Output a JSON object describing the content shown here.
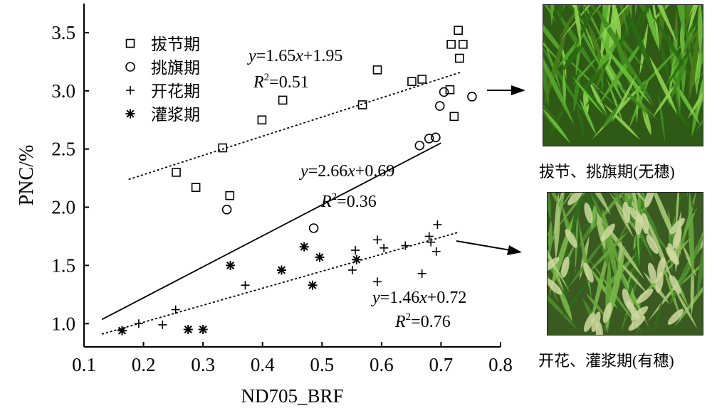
{
  "chart_data": {
    "type": "scatter",
    "xlabel": "ND705_BRF",
    "ylabel": "PNC/%",
    "xlim": [
      0.1,
      0.8
    ],
    "ylim": [
      0.8,
      3.75
    ],
    "xticks": [
      "0.1",
      "0.2",
      "0.3",
      "0.4",
      "0.5",
      "0.6",
      "0.7",
      "0.8"
    ],
    "yticks": [
      "1.0",
      "1.5",
      "2.0",
      "2.5",
      "3.0",
      "3.5"
    ],
    "legend_position": "top-left",
    "series": [
      {
        "name": "拔节期",
        "marker": "square",
        "points": [
          [
            0.255,
            2.3
          ],
          [
            0.288,
            2.17
          ],
          [
            0.333,
            2.51
          ],
          [
            0.345,
            2.1
          ],
          [
            0.399,
            2.75
          ],
          [
            0.434,
            2.92
          ],
          [
            0.568,
            2.88
          ],
          [
            0.593,
            3.18
          ],
          [
            0.651,
            3.08
          ],
          [
            0.668,
            3.1
          ],
          [
            0.715,
            3.01
          ],
          [
            0.717,
            3.4
          ],
          [
            0.722,
            2.78
          ],
          [
            0.729,
            3.52
          ],
          [
            0.731,
            3.28
          ],
          [
            0.737,
            3.4
          ]
        ]
      },
      {
        "name": "挑旗期",
        "marker": "circle",
        "points": [
          [
            0.34,
            1.98
          ],
          [
            0.486,
            1.82
          ],
          [
            0.664,
            2.53
          ],
          [
            0.68,
            2.59
          ],
          [
            0.691,
            2.6
          ],
          [
            0.698,
            2.87
          ],
          [
            0.705,
            2.99
          ],
          [
            0.752,
            2.95
          ]
        ]
      },
      {
        "name": "开花期",
        "marker": "plus",
        "points": [
          [
            0.192,
            1.0
          ],
          [
            0.232,
            0.99
          ],
          [
            0.254,
            1.12
          ],
          [
            0.371,
            1.33
          ],
          [
            0.551,
            1.46
          ],
          [
            0.556,
            1.63
          ],
          [
            0.593,
            1.36
          ],
          [
            0.593,
            1.72
          ],
          [
            0.604,
            1.65
          ],
          [
            0.64,
            1.67
          ],
          [
            0.668,
            1.43
          ],
          [
            0.68,
            1.75
          ],
          [
            0.683,
            1.7
          ],
          [
            0.692,
            1.62
          ],
          [
            0.694,
            1.85
          ]
        ]
      },
      {
        "name": "灌浆期",
        "marker": "asterisk",
        "points": [
          [
            0.164,
            0.94
          ],
          [
            0.275,
            0.95
          ],
          [
            0.3,
            0.95
          ],
          [
            0.346,
            1.5
          ],
          [
            0.432,
            1.46
          ],
          [
            0.47,
            1.66
          ],
          [
            0.484,
            1.33
          ],
          [
            0.496,
            1.57
          ],
          [
            0.558,
            1.55
          ]
        ]
      }
    ],
    "regression_lines": [
      {
        "style": "dotted",
        "x": [
          0.175,
          0.735
        ],
        "slope": 1.65,
        "intercept": 1.95,
        "equation": {
          "y": "y",
          "eq": "=1.65",
          "x": "x",
          "rest": "+1.95"
        },
        "r2": {
          "r": "R",
          "sup": "2",
          "val": "=0.51"
        }
      },
      {
        "style": "solid",
        "x": [
          0.13,
          0.7
        ],
        "slope": 2.66,
        "intercept": 0.69,
        "equation": {
          "y": "y",
          "eq": "=2.66",
          "x": "x",
          "rest": "+0.69"
        },
        "r2": {
          "r": "R",
          "sup": "2",
          "val": "=0.36"
        }
      },
      {
        "style": "dotted",
        "x": [
          0.13,
          0.73
        ],
        "slope": 1.46,
        "intercept": 0.72,
        "equation": {
          "y": "y",
          "eq": "=1.46",
          "x": "x",
          "rest": "+0.72"
        },
        "r2": {
          "r": "R",
          "sup": "2",
          "val": "=0.76"
        }
      }
    ]
  },
  "images": [
    {
      "caption": "拔节、挑旗期(无穗)",
      "content": "wheat canopy photo without ears"
    },
    {
      "caption": "开花、灌浆期(有穗)",
      "content": "wheat canopy photo with ears"
    }
  ]
}
